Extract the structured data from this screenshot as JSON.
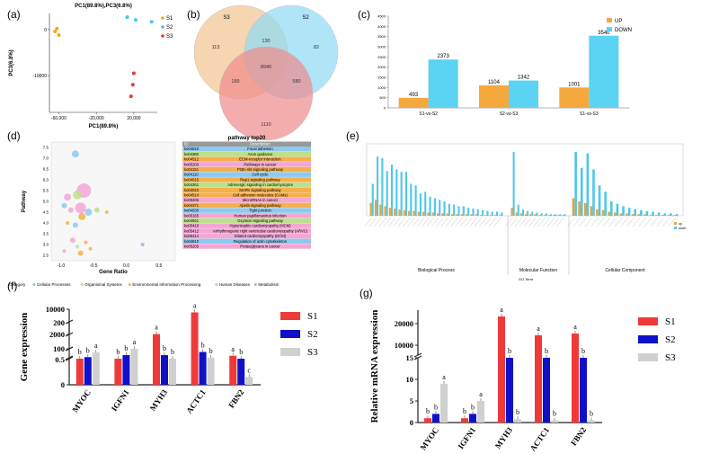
{
  "panel_labels": [
    "(a)",
    "(b)",
    "(c)",
    "(d)",
    "(e)",
    "(f)",
    "(g)"
  ],
  "chart_data": [
    {
      "id": "a",
      "type": "scatter",
      "title": "PC1(89.8%),PC3(6.8%)",
      "xlabel": "PC1(89.8%)",
      "ylabel": "PC3(6.8%)",
      "xlim": [
        -70000,
        45000
      ],
      "ylim": [
        -18000,
        3500
      ],
      "xticks": [
        -60000,
        -20000,
        20000
      ],
      "xtick_labels": [
        "-60,000",
        "-20,000",
        "20,000"
      ],
      "yticks": [
        0,
        -10000
      ],
      "ytick_labels": [
        "0",
        "-10000"
      ],
      "legend": [
        "S1",
        "S2",
        "S3"
      ],
      "colors": {
        "S1": "#f5a623",
        "S2": "#4fc3e8",
        "S3": "#e53935"
      },
      "series": [
        {
          "name": "S1",
          "points": [
            [
              -64000,
              -400
            ],
            [
              -62000,
              200
            ],
            [
              -60000,
              -1200
            ]
          ]
        },
        {
          "name": "S2",
          "points": [
            [
              13000,
              2700
            ],
            [
              22000,
              2100
            ],
            [
              39000,
              1700
            ]
          ]
        },
        {
          "name": "S3",
          "points": [
            [
              20000,
              -9500
            ],
            [
              19000,
              -12000
            ],
            [
              17000,
              -14500
            ]
          ]
        }
      ]
    },
    {
      "id": "b",
      "type": "venn",
      "sets": [
        "S3",
        "S2",
        "S1"
      ],
      "colors": {
        "S3": "#f2c48f",
        "S2": "#8fdaf5",
        "S1": "#f08a8a"
      },
      "regions": [
        {
          "label": "S3 only",
          "value": 113
        },
        {
          "label": "S2 only",
          "value": 82
        },
        {
          "label": "S1 only",
          "value": 1110
        },
        {
          "label": "S3 & S2",
          "value": 130
        },
        {
          "label": "S3 & S1",
          "value": 189
        },
        {
          "label": "S2 & S1",
          "value": 580
        },
        {
          "label": "all",
          "value": 8940
        }
      ]
    },
    {
      "id": "c",
      "type": "bar",
      "categories": [
        "S1-vs-S2",
        "S2-vs-S3",
        "S1-vs-S3"
      ],
      "series": [
        {
          "name": "UP",
          "values": [
            493,
            1104,
            1001
          ],
          "color": "#f5a83c"
        },
        {
          "name": "DOWN",
          "values": [
            2373,
            1342,
            3540
          ],
          "color": "#5bd3f3"
        }
      ],
      "ylim": [
        0,
        4500
      ],
      "yticks": [
        0,
        500,
        1000,
        1500,
        2000,
        2500,
        3000,
        3500,
        4000,
        4500
      ],
      "ytick_labels": [
        "0",
        "500",
        "1000",
        "1500",
        "2000",
        "2500",
        "3000",
        "3500",
        "4000",
        "4500"
      ],
      "legend": [
        "UP",
        "DOWN"
      ]
    },
    {
      "id": "d",
      "type": "scatter",
      "title": "pathway top20",
      "xlabel": "Gene Ratio",
      "ylabel": "Pathway",
      "xticks": [
        -1.0,
        -0.5,
        0.0,
        0.5
      ],
      "xtick_labels": [
        "-1.0",
        "-0.5",
        "0.0",
        "0.5"
      ],
      "ytick_labels": [
        "2.5",
        "3.0",
        "3.5",
        "4.0",
        "4.5",
        "5.0",
        "5.5",
        "6.0",
        "6.5",
        "7.0",
        "7.5"
      ],
      "table_header": [
        "ID",
        "Description"
      ],
      "pathways": [
        {
          "id": "ko04510",
          "desc": "Focal adhesion",
          "category": "Cellular Processes"
        },
        {
          "id": "ko04360",
          "desc": "Axon guidance",
          "category": "Organismal Systems"
        },
        {
          "id": "ko04512",
          "desc": "ECM-receptor interaction",
          "category": "Environmental Information Processing"
        },
        {
          "id": "ko05200",
          "desc": "Pathways in cancer",
          "category": "Human Diseases"
        },
        {
          "id": "ko04151",
          "desc": "PI3K-Akt signaling pathway",
          "category": "Environmental Information Processing"
        },
        {
          "id": "ko04110",
          "desc": "Cell cycle",
          "category": "Cellular Processes"
        },
        {
          "id": "ko04015",
          "desc": "Rap1 signaling pathway",
          "category": "Environmental Information Processing"
        },
        {
          "id": "ko04261",
          "desc": "Adrenergic signaling in cardiomyocytes",
          "category": "Organismal Systems"
        },
        {
          "id": "ko04010",
          "desc": "MAPK signaling pathway",
          "category": "Environmental Information Processing"
        },
        {
          "id": "ko04514",
          "desc": "Cell adhesion molecules (CAMs)",
          "category": "Environmental Information Processing"
        },
        {
          "id": "ko05206",
          "desc": "MicroRNAs in cancer",
          "category": "Human Diseases"
        },
        {
          "id": "ko04371",
          "desc": "Apelin signaling pathway",
          "category": "Environmental Information Processing"
        },
        {
          "id": "ko04530",
          "desc": "Tight junction",
          "category": "Cellular Processes"
        },
        {
          "id": "ko05165",
          "desc": "Human papillomavirus infection",
          "category": "Human Diseases"
        },
        {
          "id": "ko04921",
          "desc": "Oxytocin signaling pathway",
          "category": "Organismal Systems"
        },
        {
          "id": "ko05410",
          "desc": "Hypertrophic cardiomyopathy (HCM)",
          "category": "Human Diseases"
        },
        {
          "id": "ko05412",
          "desc": "Arrhythmogenic right ventricular cardiomyopathy (ARVC)",
          "category": "Human Diseases"
        },
        {
          "id": "ko05414",
          "desc": "Dilated cardiomyopathy (DCM)",
          "category": "Human Diseases"
        },
        {
          "id": "ko04810",
          "desc": "Regulation of actin cytoskeleton",
          "category": "Cellular Processes"
        },
        {
          "id": "ko05205",
          "desc": "Proteoglycans in cancer",
          "category": "Human Diseases"
        }
      ],
      "category_colors": {
        "Cellular Processes": "#8ec9f0",
        "Organismal Systems": "#bde08c",
        "Environmental Information Processing": "#f5b04c",
        "Human Diseases": "#f4a7d3",
        "Metabolism": "#a8a8f0"
      },
      "category_legend_title": "Category",
      "category_legend": [
        "Cellular Processes",
        "Organismal Systems",
        "Environmental Information Processing",
        "Human Diseases",
        "Metabolism"
      ]
    },
    {
      "id": "e",
      "type": "bar",
      "xlabel": "GO Term",
      "groups": [
        "Biological Process",
        "Molecular Function",
        "Cellular Component"
      ],
      "series": [
        {
          "name": "up",
          "color": "#e8a33c"
        },
        {
          "name": "down",
          "color": "#4fc8e8"
        }
      ],
      "values_bp_down": [
        40,
        74,
        72,
        56,
        64,
        58,
        55,
        55,
        40,
        38,
        28,
        30,
        24,
        22,
        20,
        18,
        15,
        14,
        12,
        12,
        10,
        9,
        8,
        7,
        6,
        5,
        5,
        4
      ],
      "values_bp_up": [
        16,
        20,
        14,
        12,
        10,
        9,
        8,
        7,
        6,
        6,
        5,
        5,
        4,
        4,
        3,
        3,
        3,
        2,
        2,
        2,
        2,
        2,
        2,
        1,
        1,
        1,
        1,
        1
      ],
      "values_mf_down": [
        80,
        14,
        8,
        6,
        5,
        4,
        3,
        3,
        2,
        2,
        2,
        2
      ],
      "values_mf_up": [
        10,
        4,
        3,
        2,
        2,
        2,
        1,
        1,
        1,
        1,
        1,
        1
      ],
      "values_cc_down": [
        80,
        60,
        78,
        58,
        38,
        30,
        18,
        15,
        12,
        10,
        8,
        7,
        6,
        5,
        4,
        3,
        3,
        2
      ],
      "values_cc_up": [
        22,
        18,
        16,
        12,
        8,
        7,
        5,
        4,
        3,
        3,
        2,
        2,
        2,
        1,
        1,
        1,
        1,
        1
      ]
    },
    {
      "id": "f",
      "type": "bar",
      "ylabel": "Gene expression",
      "categories": [
        "MYOC",
        "IGFN1",
        "MYH3",
        "ACTC1",
        "FBN2"
      ],
      "series": [
        {
          "name": "S1",
          "values": [
            0.5,
            0.5,
            2100,
            9000,
            45
          ],
          "color": "#f03a3a"
        },
        {
          "name": "S2",
          "values": [
            15,
            60,
            60,
            130,
            0.5
          ],
          "color": "#1010c8"
        },
        {
          "name": "S3",
          "values": [
            120,
            200,
            0.5,
            5,
            0.15
          ],
          "color": "#d0d0d0"
        }
      ],
      "letters": [
        [
          "b",
          "b",
          "a"
        ],
        [
          "b",
          "b",
          "a"
        ],
        [
          "a",
          "b",
          "b"
        ],
        [
          "a",
          "b",
          "b"
        ],
        [
          "a",
          "b",
          "c"
        ]
      ],
      "yticks": [
        "0",
        "0.5",
        "50",
        "100",
        "200",
        "2000",
        "4000",
        "6000",
        "8000",
        "10000"
      ],
      "legend": [
        "S1",
        "S2",
        "S3"
      ]
    },
    {
      "id": "g",
      "type": "bar",
      "ylabel": "Relative mRNA expression",
      "categories": [
        "MYOC",
        "IGFN1",
        "MYH3",
        "ACTC1",
        "FBN2"
      ],
      "series": [
        {
          "name": "S1",
          "values": [
            1,
            1,
            21500,
            11000,
            12000
          ],
          "color": "#f03a3a"
        },
        {
          "name": "S2",
          "values": [
            2,
            2,
            15,
            15,
            15
          ],
          "color": "#1010c8"
        },
        {
          "name": "S3",
          "values": [
            9,
            5,
            0.8,
            0.5,
            0.5
          ],
          "color": "#d0d0d0"
        }
      ],
      "letters": [
        [
          "b",
          "b",
          "a"
        ],
        [
          "b",
          "b",
          "a"
        ],
        [
          "a",
          "b",
          "b"
        ],
        [
          "a",
          "b",
          "b"
        ],
        [
          "a",
          "b",
          "b"
        ]
      ],
      "yticks": [
        "0",
        "5",
        "10",
        "15",
        "10000",
        "20000"
      ],
      "legend": [
        "S1",
        "S2",
        "S3"
      ]
    }
  ]
}
